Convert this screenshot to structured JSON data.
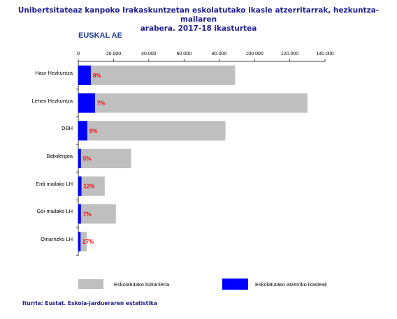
{
  "chart_data": {
    "type": "bar",
    "orientation": "horizontal",
    "stacked": true,
    "title_line1": "Unibertsitateaz kanpoko Irakaskuntzetan eskolatutako ikasle atzerritarrak, hezkuntza-mailaren",
    "title_line2": "arabera. 2017-18 ikasturtea",
    "subtitle": "EUSKAL AE",
    "categories": [
      "Haur Hezkuntza",
      "Lehen Hezkuntza",
      "DBH",
      "Batxilergoa",
      "Erdi mailako LH",
      "Goi-mailako LH",
      "Oinarrizko LH"
    ],
    "series": [
      {
        "name": "Eskolatutako atzerriko ikasleak",
        "color": "#0000ff",
        "values": [
          7100,
          9500,
          5100,
          1500,
          1800,
          1500,
          1300
        ]
      },
      {
        "name": "Eskolatutako biztanleria",
        "color": "#bfbfbf",
        "values": [
          81900,
          120500,
          78400,
          28500,
          13200,
          19800,
          3500
        ]
      }
    ],
    "data_labels": [
      "8%",
      "7%",
      "6%",
      "5%",
      "12%",
      "7%",
      "27%"
    ],
    "x_ticks": [
      "0",
      "20.000",
      "40.000",
      "60.000",
      "80.000",
      "100.000",
      "120.000",
      "140.000"
    ],
    "xlim": [
      0,
      140000
    ],
    "grid": false,
    "legend_position": "bottom"
  },
  "legend": {
    "total_label": "Eskolatutako biztanleria",
    "foreign_label": "Eskolatutako atzerriko ikasleak"
  },
  "source": "Iturria: Eustat. Eskola-jardueraren estatistika",
  "colors": {
    "title": "#1f1f8f",
    "total": "#bfbfbf",
    "foreign": "#0000ff",
    "label": "#ff0000"
  }
}
